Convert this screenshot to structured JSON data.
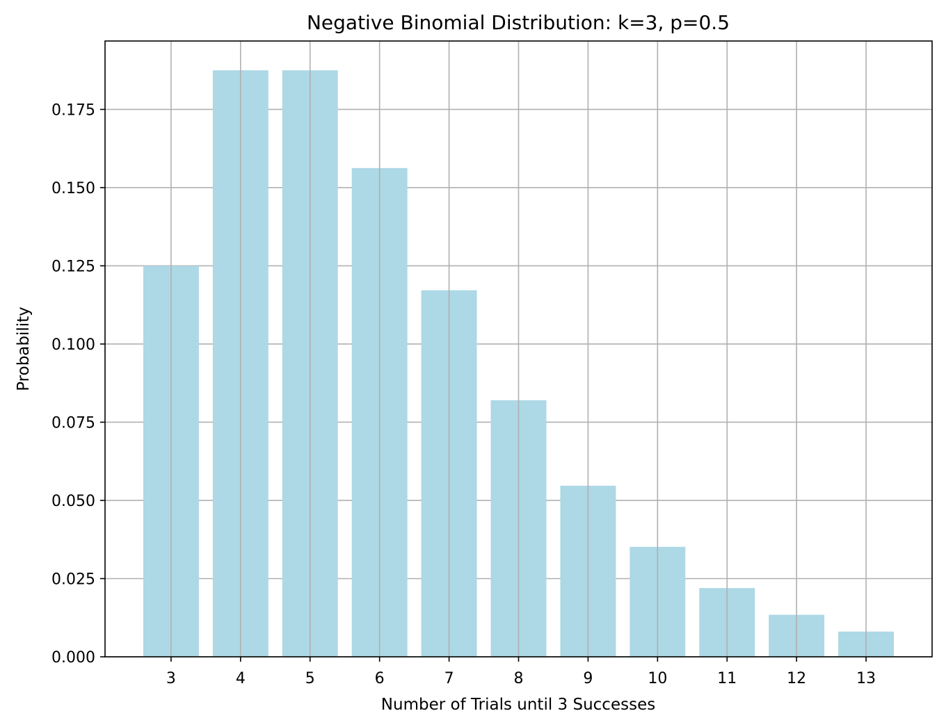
{
  "chart_data": {
    "type": "bar",
    "title": "Negative Binomial Distribution: k=3, p=0.5",
    "xlabel": "Number of Trials until 3 Successes",
    "ylabel": "Probability",
    "categories": [
      "3",
      "4",
      "5",
      "6",
      "7",
      "8",
      "9",
      "10",
      "11",
      "12",
      "13"
    ],
    "x": [
      3,
      4,
      5,
      6,
      7,
      8,
      9,
      10,
      11,
      12,
      13
    ],
    "values": [
      0.125,
      0.1875,
      0.1875,
      0.15625,
      0.1171875,
      0.08203125,
      0.0546875,
      0.03515625,
      0.02197266,
      0.01342773,
      0.00805664
    ],
    "xlim": [
      2.05,
      13.95
    ],
    "ylim": [
      0,
      0.19687
    ],
    "yticks": [
      "0.000",
      "0.025",
      "0.050",
      "0.075",
      "0.100",
      "0.125",
      "0.150",
      "0.175"
    ],
    "ytick_values": [
      0,
      0.025,
      0.05,
      0.075,
      0.1,
      0.125,
      0.15,
      0.175
    ],
    "grid": true,
    "legend": "none",
    "bar_color": "#add8e6",
    "grid_color": "#b0b0b0"
  }
}
